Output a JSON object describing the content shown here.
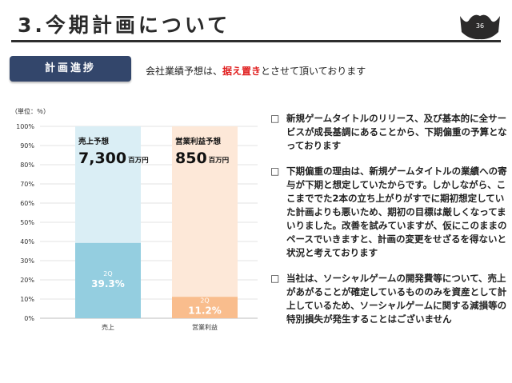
{
  "header": {
    "title": "3.今期計画について",
    "page_number": "36"
  },
  "section_tab": {
    "label": "計画進捗"
  },
  "subtitle": {
    "before": "会社業績予想は、",
    "highlight": "据え置き",
    "after": "とさせて頂いております"
  },
  "chart_unit": "（単位：％）",
  "chart_data": {
    "type": "bar",
    "stacked": true,
    "categories": [
      "売上",
      "営業利益"
    ],
    "y_ticks": [
      "0%",
      "10%",
      "20%",
      "30%",
      "40%",
      "50%",
      "60%",
      "70%",
      "80%",
      "90%",
      "100%"
    ],
    "ylim": [
      0,
      100
    ],
    "series": [
      {
        "values": [
          39.3,
          11.2
        ],
        "label": "2Q",
        "data_labels": [
          "39.3%",
          "11.2%"
        ]
      },
      {
        "values": [
          60.7,
          88.8
        ]
      }
    ],
    "colors": {
      "sales_dark": "#94cee0",
      "sales_light": "#daeef5",
      "profit_dark": "#f9bd8d",
      "profit_light": "#fde8d8"
    },
    "annotations": [
      {
        "label": "売上予想",
        "value": "7,300",
        "unit": "百万円"
      },
      {
        "label": "営業利益予想",
        "value": "850",
        "unit": "百万円"
      }
    ]
  },
  "bullets": [
    {
      "mark": "□",
      "text": "新規ゲームタイトルのリリース、及び基本的に全サービスが成長基調にあることから、下期偏重の予算となっております"
    },
    {
      "mark": "□",
      "text": "下期偏重の理由は、新規ゲームタイトルの業績への寄与が下期と想定していたからです。しかしながら、ここまででた2本の立ち上がりがすでに期初想定していた計画よりも悪いため、期初の目標は厳しくなってまいりました。改善を試みていますが、仮にこのままのペースでいきますと、計画の変更をせざるを得ないと状況と考えております"
    },
    {
      "mark": "□",
      "text": "当社は、ソーシャルゲームの開発費等について、売上があがることが確定しているもののみを資産として計上しているため、ソーシャルゲームに関する減損等の特別損失が発生することはございません"
    }
  ]
}
